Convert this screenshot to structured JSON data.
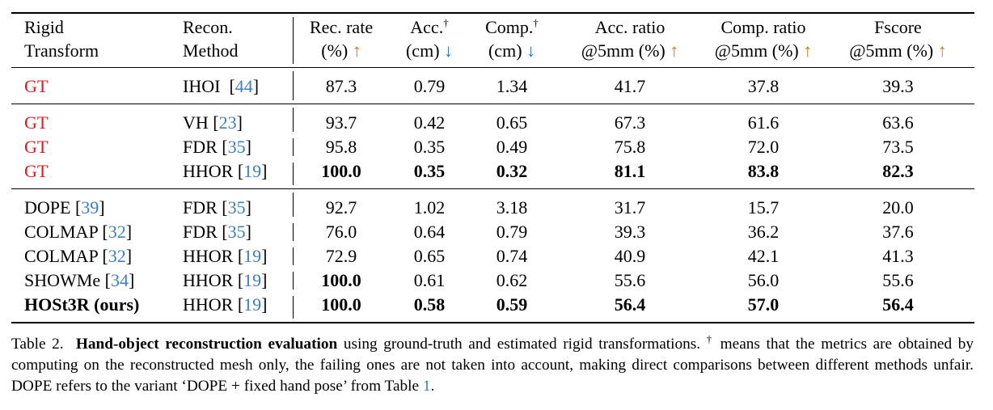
{
  "header": {
    "col1": [
      "Rigid",
      "Transform"
    ],
    "col2": [
      "Recon.",
      "Method"
    ],
    "metrics": [
      {
        "line1": "Rec. rate",
        "sup": "",
        "line2": "(%)",
        "arrow": "↑",
        "dir": "up"
      },
      {
        "line1": "Acc.",
        "sup": "†",
        "line2": "(cm)",
        "arrow": "↓",
        "dir": "down"
      },
      {
        "line1": "Comp.",
        "sup": "†",
        "line2": "(cm)",
        "arrow": "↓",
        "dir": "down"
      },
      {
        "line1": "Acc. ratio",
        "sup": "",
        "line2": "@5mm (%)",
        "arrow": "↑",
        "dir": "up"
      },
      {
        "line1": "Comp. ratio",
        "sup": "",
        "line2": "@5mm (%)",
        "arrow": "↑",
        "dir": "up"
      },
      {
        "line1": "Fscore",
        "sup": "",
        "line2": "@5mm (%)",
        "arrow": "↑",
        "dir": "up"
      }
    ]
  },
  "groups": [
    [
      {
        "transform": "GT",
        "transform_ref": "",
        "transform_red": true,
        "transform_bold": false,
        "method": "IHOI",
        "method_ref": "44",
        "values": [
          "87.3",
          "0.79",
          "1.34",
          "41.7",
          "37.8",
          "39.3"
        ],
        "bold": [
          false,
          false,
          false,
          false,
          false,
          false
        ]
      }
    ],
    [
      {
        "transform": "GT",
        "transform_ref": "",
        "transform_red": true,
        "transform_bold": false,
        "method": "VH",
        "method_ref": "23",
        "values": [
          "93.7",
          "0.42",
          "0.65",
          "67.3",
          "61.6",
          "63.6"
        ],
        "bold": [
          false,
          false,
          false,
          false,
          false,
          false
        ]
      },
      {
        "transform": "GT",
        "transform_ref": "",
        "transform_red": true,
        "transform_bold": false,
        "method": "FDR",
        "method_ref": "35",
        "values": [
          "95.8",
          "0.35",
          "0.49",
          "75.8",
          "72.0",
          "73.5"
        ],
        "bold": [
          false,
          false,
          false,
          false,
          false,
          false
        ]
      },
      {
        "transform": "GT",
        "transform_ref": "",
        "transform_red": true,
        "transform_bold": false,
        "method": "HHOR",
        "method_ref": "19",
        "values": [
          "100.0",
          "0.35",
          "0.32",
          "81.1",
          "83.8",
          "82.3"
        ],
        "bold": [
          true,
          true,
          true,
          true,
          true,
          true
        ]
      }
    ],
    [
      {
        "transform": "DOPE",
        "transform_ref": "39",
        "transform_red": false,
        "transform_bold": false,
        "method": "FDR",
        "method_ref": "35",
        "values": [
          "92.7",
          "1.02",
          "3.18",
          "31.7",
          "15.7",
          "20.0"
        ],
        "bold": [
          false,
          false,
          false,
          false,
          false,
          false
        ]
      },
      {
        "transform": "COLMAP",
        "transform_ref": "32",
        "transform_red": false,
        "transform_bold": false,
        "method": "FDR",
        "method_ref": "35",
        "values": [
          "76.0",
          "0.64",
          "0.79",
          "39.3",
          "36.2",
          "37.6"
        ],
        "bold": [
          false,
          false,
          false,
          false,
          false,
          false
        ]
      },
      {
        "transform": "COLMAP",
        "transform_ref": "32",
        "transform_red": false,
        "transform_bold": false,
        "method": "HHOR",
        "method_ref": "19",
        "values": [
          "72.9",
          "0.65",
          "0.74",
          "40.9",
          "42.1",
          "41.3"
        ],
        "bold": [
          false,
          false,
          false,
          false,
          false,
          false
        ]
      },
      {
        "transform": "SHOWMe",
        "transform_ref": "34",
        "transform_red": false,
        "transform_bold": false,
        "method": "HHOR",
        "method_ref": "19",
        "values": [
          "100.0",
          "0.61",
          "0.62",
          "55.6",
          "56.0",
          "55.6"
        ],
        "bold": [
          true,
          false,
          false,
          false,
          false,
          false
        ]
      },
      {
        "transform": "HOSt3R (ours)",
        "transform_ref": "",
        "transform_red": false,
        "transform_bold": true,
        "method": "HHOR",
        "method_ref": "19",
        "values": [
          "100.0",
          "0.58",
          "0.59",
          "56.4",
          "57.0",
          "56.4"
        ],
        "bold": [
          true,
          true,
          true,
          true,
          true,
          true
        ]
      }
    ]
  ],
  "caption": {
    "label": "Table 2.",
    "title": "Hand-object reconstruction evaluation",
    "text1": " using ground-truth and estimated rigid transformations. ",
    "dagger": "†",
    "text2": " means that the metrics are obtained by computing on the reconstructed mesh only, the failing ones are not taken into account, making direct comparisons between different methods unfair. DOPE refers to the variant ‘DOPE + fixed hand pose’ from Table ",
    "table_ref": "1",
    "text3": "."
  },
  "colors": {
    "gt": "#e8141b",
    "ref": "#3b7fc4",
    "up_arrow": "#d9730d",
    "down_arrow": "#2a6fc4"
  }
}
